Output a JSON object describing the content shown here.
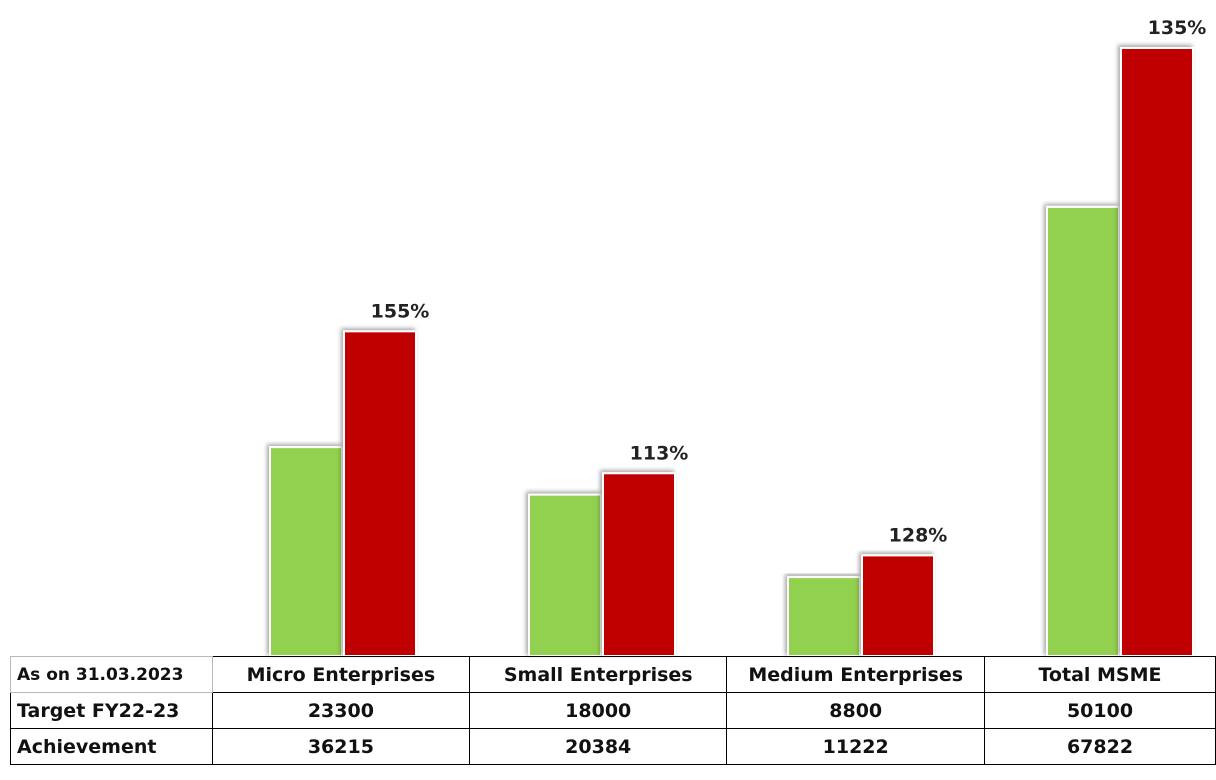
{
  "chart_data": {
    "type": "bar",
    "categories": [
      "Micro Enterprises",
      "Small Enterprises",
      "Medium Enterprises",
      "Total MSME"
    ],
    "series": [
      {
        "name": "Target FY22-23",
        "values": [
          23300,
          18000,
          8800,
          50100
        ],
        "color": "#92d050"
      },
      {
        "name": "Achievement",
        "values": [
          36215,
          20384,
          11222,
          67822
        ],
        "color": "#c00000"
      }
    ],
    "data_labels": [
      "155%",
      "113%",
      "128%",
      "135%"
    ],
    "ylim": [
      0,
      67822
    ],
    "grid": false,
    "legend": "data table below chart"
  },
  "table": {
    "corner": "As on 31.03.2023",
    "columns": [
      "Micro Enterprises",
      "Small Enterprises",
      "Medium Enterprises",
      "Total MSME"
    ],
    "rows": [
      {
        "label": "Target FY22-23",
        "values": [
          "23300",
          "18000",
          "8800",
          "50100"
        ]
      },
      {
        "label": "Achievement",
        "values": [
          "36215",
          "20384",
          "11222",
          "67822"
        ]
      }
    ]
  }
}
